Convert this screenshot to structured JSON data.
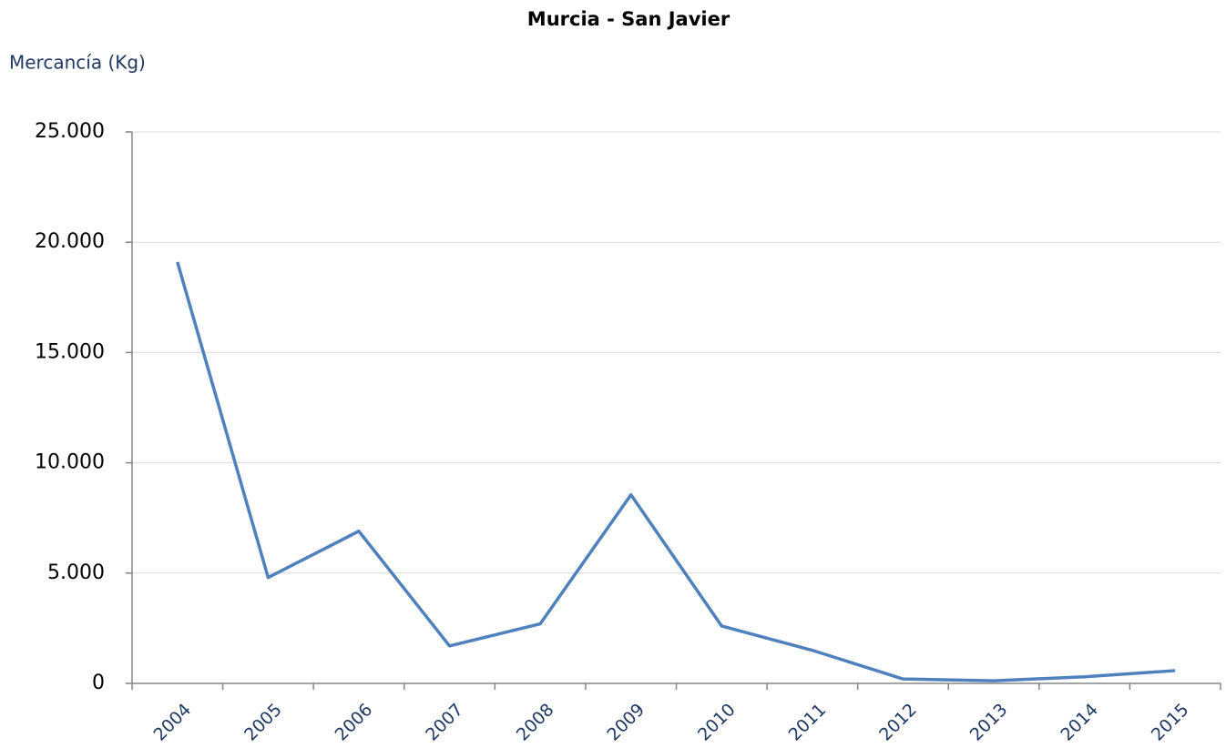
{
  "chart_data": {
    "type": "line",
    "title": "Murcia - San Javier",
    "y_label": "Mercancía (Kg)",
    "categories": [
      "2004",
      "2005",
      "2006",
      "2007",
      "2008",
      "2009",
      "2010",
      "2011",
      "2012",
      "2013",
      "2014",
      "2015"
    ],
    "series": [
      {
        "name": "Mercancía",
        "color": "#4f81bd",
        "values": [
          19100,
          4800,
          6900,
          1700,
          2700,
          8550,
          2600,
          1500,
          200,
          120,
          300,
          580
        ]
      }
    ],
    "ylim": [
      0,
      25000
    ],
    "yticks": [
      0,
      {
        "value": 5000,
        "label": "5.000"
      },
      {
        "value": 10000,
        "label": "10.000"
      },
      {
        "value": 15000,
        "label": "15.000"
      },
      {
        "value": 20000,
        "label": "20.000"
      },
      {
        "value": 25000,
        "label": "25.000"
      }
    ],
    "grid": true
  }
}
